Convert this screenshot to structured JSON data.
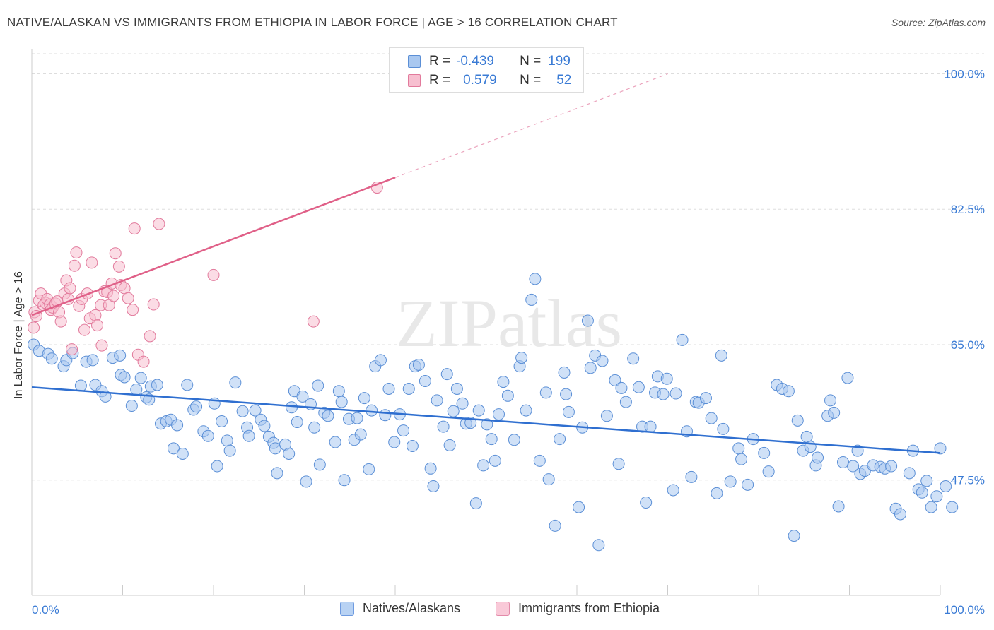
{
  "title": "NATIVE/ALASKAN VS IMMIGRANTS FROM ETHIOPIA IN LABOR FORCE | AGE > 16 CORRELATION CHART",
  "source": "Source: ZipAtlas.com",
  "watermark": "ZIPatlas",
  "legend_box": {
    "rows": [
      {
        "r_label": "R =",
        "r_value": "-0.439",
        "n_label": "N =",
        "n_value": "199",
        "color": "#a9c8f0",
        "border": "#5b8fd6"
      },
      {
        "r_label": "R =",
        "r_value": "0.579",
        "n_label": "N =",
        "n_value": "52",
        "color": "#f7bfd0",
        "border": "#e27a9c"
      }
    ]
  },
  "bottom_legend": [
    {
      "label": "Natives/Alaskans",
      "color": "#b8d2f3",
      "border": "#6f9be0"
    },
    {
      "label": "Immigrants from Ethiopia",
      "color": "#f9c9d8",
      "border": "#e38aa9"
    }
  ],
  "colors": {
    "blue_fill": "#a9c8f0",
    "blue_stroke": "#5b8fd6",
    "blue_line": "#2f6fd0",
    "pink_fill": "#f7bfd0",
    "pink_stroke": "#e27a9c",
    "pink_line": "#e06088",
    "tick_text": "#3a7bd5",
    "grid": "#dddddd"
  },
  "chart_data": {
    "type": "scatter",
    "title": "NATIVE/ALASKAN VS IMMIGRANTS FROM ETHIOPIA IN LABOR FORCE | AGE > 16 CORRELATION CHART",
    "xlabel": "",
    "ylabel": "In Labor Force | Age > 16",
    "xlim": [
      0,
      100
    ],
    "ylim": [
      32.6,
      102.6
    ],
    "x_tick_labels": [
      "0.0%",
      "100.0%"
    ],
    "y_ticks": [
      47.5,
      65.0,
      82.5,
      100.0
    ],
    "y_tick_labels": [
      "47.5%",
      "65.0%",
      "82.5%",
      "100.0%"
    ],
    "grid": true,
    "legend_position": "top-center",
    "series": [
      {
        "name": "Natives/Alaskans",
        "R": -0.439,
        "N": 199,
        "trend": {
          "x": [
            0,
            100
          ],
          "y": [
            59.5,
            51.0
          ]
        },
        "points": [
          [
            0.2,
            65.0
          ],
          [
            0.8,
            64.2
          ],
          [
            1.8,
            63.8
          ],
          [
            2.2,
            63.2
          ],
          [
            3.5,
            62.2
          ],
          [
            3.8,
            63.0
          ],
          [
            4.5,
            63.9
          ],
          [
            5.4,
            59.7
          ],
          [
            6.0,
            62.8
          ],
          [
            6.7,
            63.0
          ],
          [
            7.0,
            59.8
          ],
          [
            7.7,
            59.0
          ],
          [
            8.1,
            58.3
          ],
          [
            8.9,
            63.3
          ],
          [
            9.7,
            63.6
          ],
          [
            9.8,
            61.1
          ],
          [
            10.2,
            60.8
          ],
          [
            11.0,
            57.1
          ],
          [
            11.5,
            59.2
          ],
          [
            12.0,
            60.7
          ],
          [
            12.6,
            58.2
          ],
          [
            12.9,
            57.9
          ],
          [
            13.1,
            59.6
          ],
          [
            13.8,
            59.8
          ],
          [
            14.2,
            54.8
          ],
          [
            14.8,
            55.1
          ],
          [
            15.3,
            55.3
          ],
          [
            15.6,
            51.6
          ],
          [
            16.0,
            54.6
          ],
          [
            16.6,
            50.9
          ],
          [
            17.1,
            59.8
          ],
          [
            17.8,
            56.6
          ],
          [
            18.1,
            57.0
          ],
          [
            18.9,
            53.8
          ],
          [
            19.4,
            53.2
          ],
          [
            20.1,
            57.4
          ],
          [
            20.4,
            49.3
          ],
          [
            20.9,
            55.1
          ],
          [
            21.5,
            52.6
          ],
          [
            21.8,
            51.3
          ],
          [
            22.4,
            60.1
          ],
          [
            23.2,
            56.4
          ],
          [
            23.7,
            54.3
          ],
          [
            23.9,
            53.2
          ],
          [
            24.6,
            56.5
          ],
          [
            25.2,
            55.3
          ],
          [
            25.6,
            54.5
          ],
          [
            26.1,
            53.1
          ],
          [
            26.6,
            52.3
          ],
          [
            26.8,
            51.6
          ],
          [
            27.0,
            48.4
          ],
          [
            27.9,
            52.1
          ],
          [
            28.3,
            50.9
          ],
          [
            28.6,
            56.9
          ],
          [
            28.9,
            59.0
          ],
          [
            29.2,
            55.0
          ],
          [
            29.8,
            58.3
          ],
          [
            30.2,
            47.3
          ],
          [
            30.7,
            57.3
          ],
          [
            31.1,
            54.3
          ],
          [
            31.5,
            59.7
          ],
          [
            31.7,
            49.5
          ],
          [
            32.2,
            56.2
          ],
          [
            32.6,
            55.8
          ],
          [
            33.4,
            52.4
          ],
          [
            33.8,
            59.0
          ],
          [
            34.1,
            57.6
          ],
          [
            34.4,
            47.5
          ],
          [
            34.9,
            55.4
          ],
          [
            35.5,
            52.7
          ],
          [
            35.8,
            55.5
          ],
          [
            36.2,
            53.4
          ],
          [
            36.6,
            58.1
          ],
          [
            37.1,
            48.9
          ],
          [
            37.4,
            56.5
          ],
          [
            37.8,
            62.2
          ],
          [
            38.4,
            63.0
          ],
          [
            38.9,
            55.9
          ],
          [
            39.3,
            59.3
          ],
          [
            39.9,
            52.4
          ],
          [
            40.5,
            56.0
          ],
          [
            40.9,
            53.9
          ],
          [
            41.5,
            59.3
          ],
          [
            41.9,
            51.9
          ],
          [
            42.2,
            62.2
          ],
          [
            42.6,
            62.4
          ],
          [
            43.3,
            60.3
          ],
          [
            43.9,
            49.0
          ],
          [
            44.2,
            46.7
          ],
          [
            44.6,
            57.8
          ],
          [
            45.3,
            54.4
          ],
          [
            45.7,
            61.2
          ],
          [
            46.0,
            52.0
          ],
          [
            46.4,
            56.4
          ],
          [
            46.8,
            59.3
          ],
          [
            47.4,
            57.4
          ],
          [
            47.8,
            54.8
          ],
          [
            48.3,
            54.9
          ],
          [
            48.9,
            44.5
          ],
          [
            49.2,
            56.5
          ],
          [
            49.7,
            49.4
          ],
          [
            50.1,
            54.7
          ],
          [
            50.6,
            52.8
          ],
          [
            51.0,
            50.0
          ],
          [
            51.4,
            56.0
          ],
          [
            51.9,
            60.2
          ],
          [
            52.4,
            58.4
          ],
          [
            53.1,
            52.7
          ],
          [
            53.7,
            62.2
          ],
          [
            53.9,
            63.3
          ],
          [
            54.4,
            56.5
          ],
          [
            55.0,
            70.8
          ],
          [
            55.4,
            73.5
          ],
          [
            55.9,
            50.0
          ],
          [
            56.6,
            58.8
          ],
          [
            56.9,
            47.6
          ],
          [
            57.6,
            41.6
          ],
          [
            58.1,
            52.8
          ],
          [
            58.6,
            61.4
          ],
          [
            58.8,
            58.6
          ],
          [
            59.1,
            56.3
          ],
          [
            60.2,
            44.0
          ],
          [
            60.6,
            54.3
          ],
          [
            61.2,
            68.1
          ],
          [
            61.5,
            62.0
          ],
          [
            62.0,
            63.6
          ],
          [
            62.4,
            39.1
          ],
          [
            62.8,
            62.9
          ],
          [
            63.3,
            55.8
          ],
          [
            64.2,
            60.4
          ],
          [
            64.6,
            49.6
          ],
          [
            64.9,
            59.4
          ],
          [
            65.4,
            57.6
          ],
          [
            66.2,
            63.2
          ],
          [
            66.8,
            59.5
          ],
          [
            67.2,
            54.4
          ],
          [
            67.6,
            44.6
          ],
          [
            68.1,
            54.4
          ],
          [
            68.6,
            58.8
          ],
          [
            68.9,
            60.9
          ],
          [
            69.5,
            58.6
          ],
          [
            69.9,
            60.6
          ],
          [
            70.6,
            46.2
          ],
          [
            70.9,
            58.7
          ],
          [
            71.6,
            65.6
          ],
          [
            72.1,
            53.8
          ],
          [
            72.6,
            47.9
          ],
          [
            73.1,
            57.6
          ],
          [
            73.4,
            57.5
          ],
          [
            74.2,
            58.1
          ],
          [
            74.8,
            55.5
          ],
          [
            75.4,
            45.8
          ],
          [
            75.9,
            63.6
          ],
          [
            76.1,
            54.1
          ],
          [
            76.9,
            47.3
          ],
          [
            77.8,
            51.6
          ],
          [
            78.1,
            50.2
          ],
          [
            78.8,
            46.9
          ],
          [
            79.4,
            52.8
          ],
          [
            80.6,
            51.0
          ],
          [
            81.1,
            48.6
          ],
          [
            82.0,
            59.8
          ],
          [
            82.6,
            59.3
          ],
          [
            83.3,
            59.0
          ],
          [
            83.9,
            40.3
          ],
          [
            84.3,
            55.2
          ],
          [
            84.9,
            51.3
          ],
          [
            85.3,
            53.1
          ],
          [
            85.7,
            51.8
          ],
          [
            86.3,
            49.4
          ],
          [
            86.5,
            50.4
          ],
          [
            87.6,
            55.8
          ],
          [
            87.9,
            57.8
          ],
          [
            88.3,
            56.2
          ],
          [
            88.8,
            44.1
          ],
          [
            89.3,
            49.8
          ],
          [
            89.8,
            60.7
          ],
          [
            90.4,
            49.3
          ],
          [
            90.9,
            51.3
          ],
          [
            91.2,
            48.3
          ],
          [
            91.7,
            48.7
          ],
          [
            92.6,
            49.4
          ],
          [
            93.4,
            49.2
          ],
          [
            93.9,
            49.0
          ],
          [
            94.6,
            49.3
          ],
          [
            95.1,
            43.8
          ],
          [
            95.6,
            43.1
          ],
          [
            96.6,
            48.4
          ],
          [
            97.0,
            51.3
          ],
          [
            97.6,
            46.3
          ],
          [
            98.0,
            45.9
          ],
          [
            98.5,
            47.4
          ],
          [
            99.0,
            44.0
          ],
          [
            99.6,
            45.4
          ],
          [
            100.0,
            51.6
          ],
          [
            100.6,
            46.7
          ],
          [
            101.3,
            44.0
          ]
        ]
      },
      {
        "name": "Immigrants from Ethiopia",
        "R": 0.579,
        "N": 52,
        "trend": {
          "x": [
            0,
            40
          ],
          "y": [
            68.8,
            86.6
          ]
        },
        "trend_dashed": {
          "x": [
            40,
            70
          ],
          "y": [
            86.6,
            100.0
          ]
        },
        "points": [
          [
            0.2,
            67.2
          ],
          [
            0.3,
            69.2
          ],
          [
            0.5,
            68.7
          ],
          [
            0.8,
            70.7
          ],
          [
            1.0,
            71.6
          ],
          [
            1.3,
            70.1
          ],
          [
            1.5,
            70.4
          ],
          [
            1.7,
            70.9
          ],
          [
            2.0,
            70.2
          ],
          [
            2.1,
            69.5
          ],
          [
            2.3,
            69.8
          ],
          [
            2.6,
            70.3
          ],
          [
            2.8,
            70.6
          ],
          [
            3.0,
            69.2
          ],
          [
            3.2,
            68.0
          ],
          [
            3.6,
            71.6
          ],
          [
            3.8,
            73.3
          ],
          [
            4.0,
            70.9
          ],
          [
            4.2,
            72.3
          ],
          [
            4.4,
            64.4
          ],
          [
            4.7,
            75.2
          ],
          [
            4.9,
            76.9
          ],
          [
            5.2,
            70.0
          ],
          [
            5.5,
            70.9
          ],
          [
            5.8,
            66.9
          ],
          [
            6.1,
            71.6
          ],
          [
            6.4,
            68.4
          ],
          [
            6.6,
            75.6
          ],
          [
            7.0,
            68.8
          ],
          [
            7.2,
            67.5
          ],
          [
            7.6,
            70.1
          ],
          [
            7.7,
            64.9
          ],
          [
            8.0,
            71.9
          ],
          [
            8.3,
            71.8
          ],
          [
            8.5,
            70.1
          ],
          [
            8.8,
            72.9
          ],
          [
            9.0,
            71.3
          ],
          [
            9.2,
            76.8
          ],
          [
            9.6,
            75.1
          ],
          [
            9.8,
            72.7
          ],
          [
            10.2,
            72.3
          ],
          [
            10.6,
            71.0
          ],
          [
            11.1,
            69.5
          ],
          [
            11.3,
            80.0
          ],
          [
            11.7,
            63.7
          ],
          [
            12.3,
            62.8
          ],
          [
            13.0,
            66.1
          ],
          [
            13.4,
            70.2
          ],
          [
            14.0,
            80.6
          ],
          [
            20.0,
            74.0
          ],
          [
            31.0,
            68.0
          ],
          [
            38.0,
            85.3
          ]
        ]
      }
    ]
  }
}
